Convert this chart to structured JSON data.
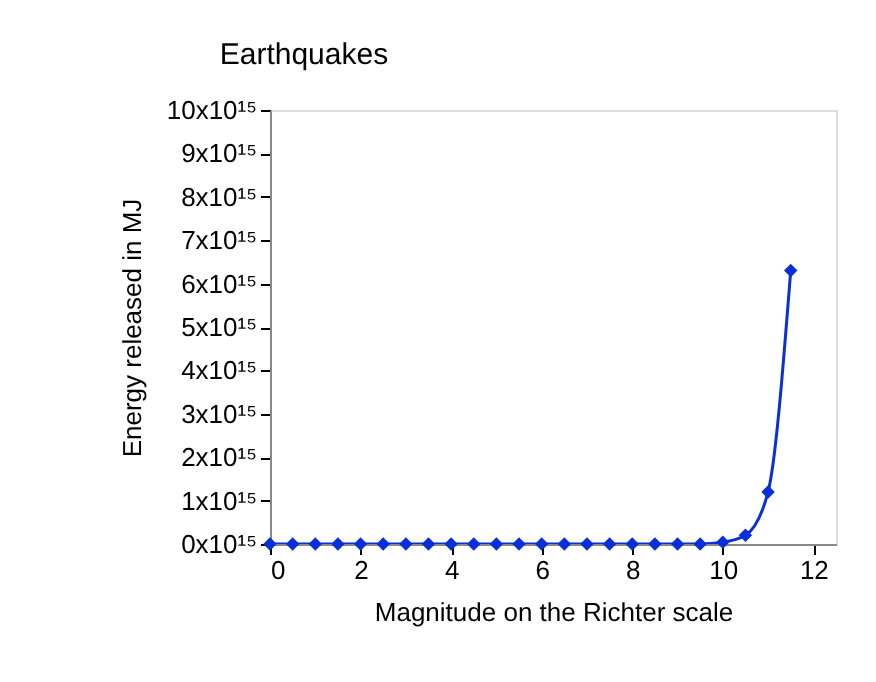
{
  "chart_data": {
    "type": "line",
    "title": "Earthquakes",
    "xlabel": "Magnitude on the Richter scale",
    "ylabel": "Energy released in MJ",
    "x": [
      0,
      0.5,
      1,
      1.5,
      2,
      2.5,
      3,
      3.5,
      4,
      4.5,
      5,
      5.5,
      6,
      6.5,
      7,
      7.5,
      8,
      8.5,
      9,
      9.5,
      10,
      10.5,
      11,
      11.5
    ],
    "series": [
      {
        "color": "#0a2fd8",
        "values": [
          0,
          0,
          0,
          0,
          0,
          0,
          0,
          0,
          0,
          0,
          0,
          0,
          0,
          0,
          0,
          0,
          0,
          0,
          0,
          0,
          40000000000000.0,
          200000000000000.0,
          1200000000000000.0,
          6300000000000000.0
        ]
      }
    ],
    "xlim": [
      0,
      12.5
    ],
    "xticks": [
      0,
      2,
      4,
      6,
      8,
      10,
      12
    ],
    "ylim": [
      0,
      1e+16
    ],
    "yticks": [
      {
        "value": 0,
        "label": "0x10¹⁵"
      },
      {
        "value": 1000000000000000.0,
        "label": "1x10¹⁵"
      },
      {
        "value": 2000000000000000.0,
        "label": "2x10¹⁵"
      },
      {
        "value": 3000000000000000.0,
        "label": "3x10¹⁵"
      },
      {
        "value": 4000000000000000.0,
        "label": "4x10¹⁵"
      },
      {
        "value": 5000000000000000.0,
        "label": "5x10¹⁵"
      },
      {
        "value": 6000000000000000.0,
        "label": "6x10¹⁵"
      },
      {
        "value": 7000000000000000.0,
        "label": "7x10¹⁵"
      },
      {
        "value": 8000000000000000.0,
        "label": "8x10¹⁵"
      },
      {
        "value": 9000000000000000.0,
        "label": "9x10¹⁵"
      },
      {
        "value": 1e+16,
        "label": "10x10¹⁵"
      }
    ],
    "grid": false,
    "legend": false,
    "marker": "diamond",
    "line_style": "solid"
  }
}
